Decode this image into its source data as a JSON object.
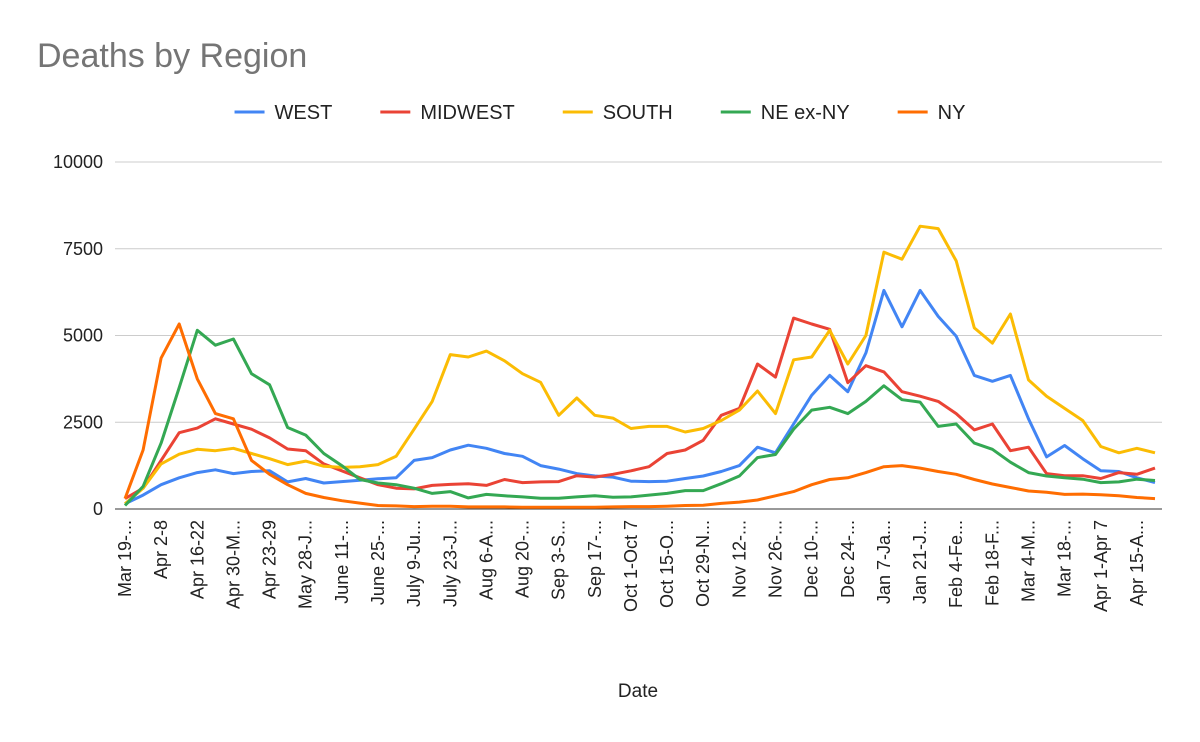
{
  "chart_data": {
    "type": "line",
    "title": "Deaths by Region",
    "x_label": "Date",
    "legend": "top",
    "grid": true,
    "ylim": [
      0,
      10000
    ],
    "yticks": [
      0,
      2500,
      5000,
      7500,
      10000
    ],
    "categories": [
      "Mar 19-...",
      null,
      "Apr 2-8",
      null,
      "Apr 16-22",
      null,
      "Apr 30-M...",
      null,
      "Apr 23-29",
      null,
      "May 28-J...",
      null,
      "June 11-...",
      null,
      "June 25-...",
      null,
      "July 9-Ju...",
      null,
      "July 23-J...",
      null,
      "Aug 6-A...",
      null,
      "Aug 20-...",
      null,
      "Sep 3-S...",
      null,
      "Sep 17-...",
      null,
      "Oct 1-Oct 7",
      null,
      "Oct 15-O...",
      null,
      "Oct 29-N...",
      null,
      "Nov 12-...",
      null,
      "Nov 26-...",
      null,
      "Dec 10-...",
      null,
      "Dec 24-...",
      null,
      "Jan 7-Ja...",
      null,
      "Jan 21-J...",
      null,
      "Feb 4-Fe...",
      null,
      "Feb 18-F...",
      null,
      "Mar 4-M...",
      null,
      "Mar 18-...",
      null,
      "Apr 1-Apr 7",
      null,
      "Apr 15-A...",
      null
    ],
    "series": [
      {
        "name": "WEST",
        "color": "#4285f4",
        "values": [
          150,
          400,
          700,
          900,
          1050,
          1130,
          1020,
          1080,
          1100,
          780,
          880,
          750,
          790,
          830,
          870,
          900,
          1400,
          1480,
          1700,
          1840,
          1750,
          1600,
          1520,
          1250,
          1150,
          1020,
          950,
          920,
          800,
          790,
          800,
          880,
          950,
          1080,
          1250,
          1780,
          1620,
          2450,
          3280,
          3850,
          3380,
          4500,
          6300,
          5250,
          6300,
          5550,
          4980,
          3850,
          3680,
          3850,
          2600,
          1500,
          1830,
          1450,
          1100,
          1080,
          900,
          760
        ]
      },
      {
        "name": "MIDWEST",
        "color": "#ea4335",
        "values": [
          300,
          600,
          1400,
          2200,
          2330,
          2600,
          2450,
          2300,
          2050,
          1730,
          1680,
          1300,
          1100,
          900,
          700,
          600,
          580,
          680,
          710,
          730,
          680,
          850,
          760,
          780,
          790,
          960,
          920,
          1000,
          1100,
          1220,
          1600,
          1700,
          1980,
          2700,
          2900,
          4180,
          3800,
          5500,
          5330,
          5180,
          3640,
          4130,
          3950,
          3380,
          3250,
          3100,
          2750,
          2280,
          2450,
          1680,
          1780,
          1020,
          960,
          960,
          880,
          1050,
          1000,
          1180
        ]
      },
      {
        "name": "SOUTH",
        "color": "#fbbc04",
        "values": [
          150,
          600,
          1300,
          1580,
          1720,
          1680,
          1750,
          1600,
          1450,
          1280,
          1380,
          1230,
          1200,
          1220,
          1280,
          1520,
          2300,
          3100,
          4450,
          4380,
          4550,
          4270,
          3900,
          3650,
          2700,
          3200,
          2700,
          2620,
          2320,
          2380,
          2380,
          2220,
          2320,
          2550,
          2850,
          3400,
          2750,
          4300,
          4380,
          5150,
          4180,
          5000,
          7400,
          7200,
          8150,
          8080,
          7150,
          5220,
          4780,
          5620,
          3720,
          3250,
          2900,
          2550,
          1800,
          1620,
          1750,
          1620
        ]
      },
      {
        "name": "NE ex-NY",
        "color": "#34a853",
        "values": [
          100,
          650,
          1900,
          3500,
          5150,
          4720,
          4900,
          3900,
          3580,
          2350,
          2130,
          1600,
          1250,
          850,
          750,
          700,
          600,
          450,
          500,
          320,
          420,
          380,
          350,
          310,
          310,
          350,
          380,
          340,
          350,
          400,
          450,
          530,
          530,
          730,
          950,
          1480,
          1570,
          2300,
          2850,
          2930,
          2750,
          3100,
          3550,
          3150,
          3080,
          2380,
          2450,
          1900,
          1720,
          1350,
          1050,
          950,
          900,
          860,
          760,
          780,
          860,
          820
        ]
      },
      {
        "name": "NY",
        "color": "#ff6d01",
        "values": [
          300,
          1700,
          4350,
          5330,
          3750,
          2750,
          2600,
          1400,
          1000,
          700,
          450,
          330,
          240,
          170,
          100,
          90,
          70,
          80,
          80,
          60,
          60,
          60,
          50,
          50,
          50,
          50,
          50,
          60,
          70,
          70,
          80,
          100,
          110,
          160,
          200,
          260,
          380,
          500,
          700,
          850,
          900,
          1050,
          1220,
          1250,
          1180,
          1080,
          1000,
          850,
          720,
          620,
          520,
          480,
          420,
          430,
          410,
          380,
          330,
          300
        ]
      }
    ]
  }
}
